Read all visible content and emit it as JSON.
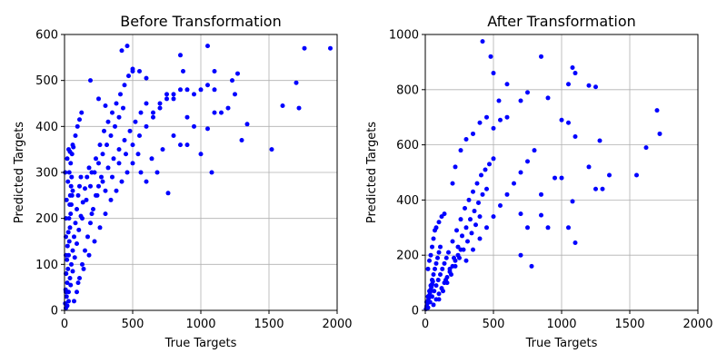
{
  "chart_data": [
    {
      "type": "scatter",
      "title": "Before Transformation",
      "xlabel": "True Targets",
      "ylabel": "Predicted Targets",
      "xlim": [
        0,
        2000
      ],
      "ylim": [
        0,
        600
      ],
      "xticks": [
        0,
        500,
        1000,
        1500,
        2000
      ],
      "yticks": [
        0,
        100,
        200,
        300,
        400,
        500,
        600
      ],
      "grid": true,
      "marker_color": "#0000ff",
      "points": [
        [
          10,
          5
        ],
        [
          15,
          30
        ],
        [
          20,
          60
        ],
        [
          25,
          90
        ],
        [
          30,
          120
        ],
        [
          35,
          150
        ],
        [
          40,
          180
        ],
        [
          45,
          210
        ],
        [
          50,
          230
        ],
        [
          55,
          250
        ],
        [
          60,
          260
        ],
        [
          20,
          10
        ],
        [
          30,
          40
        ],
        [
          40,
          70
        ],
        [
          50,
          100
        ],
        [
          60,
          130
        ],
        [
          70,
          160
        ],
        [
          80,
          190
        ],
        [
          90,
          220
        ],
        [
          100,
          250
        ],
        [
          110,
          270
        ],
        [
          120,
          290
        ],
        [
          30,
          20
        ],
        [
          45,
          55
        ],
        [
          60,
          85
        ],
        [
          75,
          115
        ],
        [
          90,
          145
        ],
        [
          105,
          175
        ],
        [
          120,
          205
        ],
        [
          135,
          235
        ],
        [
          150,
          265
        ],
        [
          165,
          290
        ],
        [
          180,
          310
        ],
        [
          5,
          15
        ],
        [
          8,
          45
        ],
        [
          12,
          80
        ],
        [
          18,
          110
        ],
        [
          22,
          140
        ],
        [
          28,
          170
        ],
        [
          33,
          200
        ],
        [
          38,
          230
        ],
        [
          42,
          250
        ],
        [
          48,
          270
        ],
        [
          52,
          290
        ],
        [
          70,
          20
        ],
        [
          90,
          40
        ],
        [
          110,
          70
        ],
        [
          130,
          100
        ],
        [
          150,
          130
        ],
        [
          170,
          160
        ],
        [
          190,
          190
        ],
        [
          210,
          220
        ],
        [
          230,
          250
        ],
        [
          250,
          270
        ],
        [
          270,
          290
        ],
        [
          100,
          60
        ],
        [
          140,
          90
        ],
        [
          180,
          120
        ],
        [
          220,
          150
        ],
        [
          260,
          180
        ],
        [
          300,
          210
        ],
        [
          340,
          240
        ],
        [
          380,
          260
        ],
        [
          420,
          280
        ],
        [
          460,
          300
        ],
        [
          500,
          320
        ],
        [
          130,
          200
        ],
        [
          160,
          240
        ],
        [
          190,
          270
        ],
        [
          220,
          300
        ],
        [
          250,
          320
        ],
        [
          280,
          340
        ],
        [
          310,
          360
        ],
        [
          340,
          380
        ],
        [
          370,
          400
        ],
        [
          400,
          420
        ],
        [
          430,
          440
        ],
        [
          200,
          210
        ],
        [
          240,
          250
        ],
        [
          280,
          280
        ],
        [
          320,
          310
        ],
        [
          360,
          330
        ],
        [
          400,
          350
        ],
        [
          440,
          370
        ],
        [
          480,
          390
        ],
        [
          520,
          410
        ],
        [
          560,
          430
        ],
        [
          600,
          450
        ],
        [
          200,
          300
        ],
        [
          230,
          330
        ],
        [
          260,
          360
        ],
        [
          290,
          390
        ],
        [
          320,
          410
        ],
        [
          350,
          430
        ],
        [
          380,
          450
        ],
        [
          410,
          470
        ],
        [
          440,
          490
        ],
        [
          470,
          510
        ],
        [
          500,
          520
        ],
        [
          300,
          260
        ],
        [
          350,
          290
        ],
        [
          400,
          320
        ],
        [
          450,
          340
        ],
        [
          500,
          360
        ],
        [
          550,
          380
        ],
        [
          600,
          400
        ],
        [
          650,
          420
        ],
        [
          700,
          440
        ],
        [
          750,
          460
        ],
        [
          800,
          470
        ],
        [
          540,
          340
        ],
        [
          560,
          300
        ],
        [
          600,
          280
        ],
        [
          640,
          330
        ],
        [
          680,
          300
        ],
        [
          720,
          350
        ],
        [
          760,
          255
        ],
        [
          800,
          380
        ],
        [
          850,
          360
        ],
        [
          900,
          360
        ],
        [
          650,
          430
        ],
        [
          700,
          450
        ],
        [
          750,
          470
        ],
        [
          800,
          460
        ],
        [
          850,
          480
        ],
        [
          900,
          480
        ],
        [
          950,
          470
        ],
        [
          1000,
          480
        ],
        [
          1050,
          490
        ],
        [
          1100,
          480
        ],
        [
          900,
          420
        ],
        [
          950,
          400
        ],
        [
          1000,
          340
        ],
        [
          1050,
          395
        ],
        [
          1080,
          300
        ],
        [
          1100,
          430
        ],
        [
          1150,
          430
        ],
        [
          1200,
          440
        ],
        [
          1250,
          470
        ],
        [
          1300,
          370
        ],
        [
          1050,
          575
        ],
        [
          1100,
          520
        ],
        [
          1230,
          500
        ],
        [
          1270,
          515
        ],
        [
          1340,
          405
        ],
        [
          1520,
          350
        ],
        [
          1600,
          445
        ],
        [
          1700,
          495
        ],
        [
          1720,
          440
        ],
        [
          1760,
          570
        ],
        [
          1950,
          570
        ],
        [
          850,
          555
        ],
        [
          870,
          520
        ],
        [
          460,
          575
        ],
        [
          420,
          565
        ],
        [
          500,
          525
        ],
        [
          550,
          520
        ],
        [
          600,
          505
        ],
        [
          190,
          500
        ],
        [
          250,
          460
        ],
        [
          300,
          445
        ],
        [
          15,
          240
        ],
        [
          25,
          280
        ],
        [
          35,
          300
        ],
        [
          45,
          320
        ],
        [
          55,
          340
        ],
        [
          65,
          355
        ],
        [
          80,
          380
        ],
        [
          95,
          400
        ],
        [
          110,
          415
        ],
        [
          125,
          430
        ],
        [
          10,
          200
        ],
        [
          10,
          160
        ],
        [
          10,
          120
        ],
        [
          10,
          80
        ],
        [
          10,
          40
        ],
        [
          5,
          300
        ],
        [
          20,
          330
        ],
        [
          30,
          350
        ],
        [
          40,
          345
        ],
        [
          60,
          360
        ]
      ]
    },
    {
      "type": "scatter",
      "title": "After Transformation",
      "xlabel": "True Targets",
      "ylabel": "Predicted Targets",
      "xlim": [
        0,
        2000
      ],
      "ylim": [
        0,
        1000
      ],
      "xticks": [
        0,
        500,
        1000,
        1500,
        2000
      ],
      "yticks": [
        0,
        200,
        400,
        600,
        800,
        1000
      ],
      "grid": true,
      "marker_color": "#0000ff",
      "points": [
        [
          5,
          5
        ],
        [
          10,
          15
        ],
        [
          15,
          25
        ],
        [
          20,
          35
        ],
        [
          25,
          45
        ],
        [
          30,
          55
        ],
        [
          35,
          65
        ],
        [
          40,
          75
        ],
        [
          45,
          85
        ],
        [
          50,
          95
        ],
        [
          55,
          105
        ],
        [
          10,
          30
        ],
        [
          20,
          50
        ],
        [
          30,
          70
        ],
        [
          40,
          90
        ],
        [
          50,
          110
        ],
        [
          60,
          130
        ],
        [
          70,
          150
        ],
        [
          80,
          170
        ],
        [
          90,
          190
        ],
        [
          100,
          210
        ],
        [
          110,
          230
        ],
        [
          20,
          10
        ],
        [
          35,
          30
        ],
        [
          50,
          50
        ],
        [
          65,
          70
        ],
        [
          80,
          90
        ],
        [
          95,
          110
        ],
        [
          110,
          130
        ],
        [
          125,
          150
        ],
        [
          140,
          170
        ],
        [
          155,
          190
        ],
        [
          170,
          210
        ],
        [
          60,
          20
        ],
        [
          80,
          40
        ],
        [
          100,
          60
        ],
        [
          120,
          80
        ],
        [
          140,
          100
        ],
        [
          160,
          120
        ],
        [
          180,
          140
        ],
        [
          200,
          160
        ],
        [
          220,
          180
        ],
        [
          240,
          200
        ],
        [
          260,
          220
        ],
        [
          100,
          40
        ],
        [
          130,
          70
        ],
        [
          160,
          100
        ],
        [
          190,
          130
        ],
        [
          220,
          160
        ],
        [
          250,
          190
        ],
        [
          280,
          220
        ],
        [
          310,
          250
        ],
        [
          340,
          280
        ],
        [
          370,
          310
        ],
        [
          400,
          340
        ],
        [
          150,
          110
        ],
        [
          180,
          150
        ],
        [
          210,
          190
        ],
        [
          240,
          230
        ],
        [
          270,
          270
        ],
        [
          300,
          300
        ],
        [
          330,
          330
        ],
        [
          360,
          360
        ],
        [
          390,
          390
        ],
        [
          420,
          420
        ],
        [
          450,
          440
        ],
        [
          200,
          250
        ],
        [
          230,
          290
        ],
        [
          260,
          330
        ],
        [
          290,
          370
        ],
        [
          320,
          400
        ],
        [
          350,
          430
        ],
        [
          380,
          460
        ],
        [
          410,
          490
        ],
        [
          440,
          510
        ],
        [
          470,
          530
        ],
        [
          500,
          550
        ],
        [
          300,
          180
        ],
        [
          350,
          220
        ],
        [
          400,
          260
        ],
        [
          450,
          300
        ],
        [
          500,
          340
        ],
        [
          550,
          380
        ],
        [
          600,
          420
        ],
        [
          650,
          460
        ],
        [
          700,
          500
        ],
        [
          750,
          540
        ],
        [
          800,
          580
        ],
        [
          20,
          150
        ],
        [
          30,
          180
        ],
        [
          40,
          200
        ],
        [
          50,
          230
        ],
        [
          60,
          260
        ],
        [
          70,
          290
        ],
        [
          80,
          300
        ],
        [
          100,
          320
        ],
        [
          120,
          340
        ],
        [
          140,
          350
        ],
        [
          200,
          460
        ],
        [
          220,
          520
        ],
        [
          260,
          580
        ],
        [
          300,
          620
        ],
        [
          350,
          640
        ],
        [
          400,
          680
        ],
        [
          450,
          700
        ],
        [
          500,
          660
        ],
        [
          550,
          690
        ],
        [
          600,
          700
        ],
        [
          420,
          975
        ],
        [
          480,
          920
        ],
        [
          500,
          860
        ],
        [
          540,
          760
        ],
        [
          600,
          820
        ],
        [
          700,
          760
        ],
        [
          750,
          790
        ],
        [
          850,
          920
        ],
        [
          900,
          770
        ],
        [
          1000,
          690
        ],
        [
          1050,
          820
        ],
        [
          1080,
          880
        ],
        [
          1100,
          860
        ],
        [
          1200,
          815
        ],
        [
          1250,
          810
        ],
        [
          1050,
          680
        ],
        [
          1100,
          630
        ],
        [
          1280,
          615
        ],
        [
          700,
          350
        ],
        [
          750,
          300
        ],
        [
          780,
          160
        ],
        [
          850,
          420
        ],
        [
          900,
          300
        ],
        [
          950,
          480
        ],
        [
          1000,
          480
        ],
        [
          1050,
          300
        ],
        [
          1100,
          245
        ],
        [
          1080,
          395
        ],
        [
          1200,
          520
        ],
        [
          1300,
          440
        ],
        [
          1350,
          490
        ],
        [
          1550,
          490
        ],
        [
          1620,
          590
        ],
        [
          1700,
          725
        ],
        [
          1720,
          640
        ],
        [
          1250,
          440
        ],
        [
          850,
          345
        ],
        [
          700,
          200
        ]
      ]
    }
  ]
}
